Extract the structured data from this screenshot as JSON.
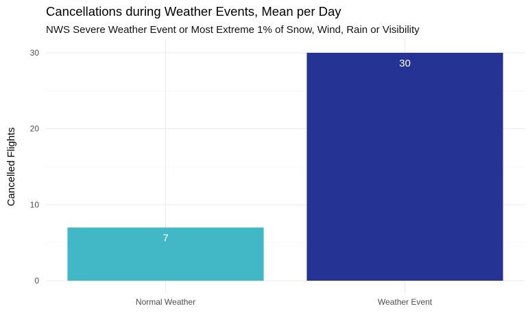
{
  "chart_data": {
    "type": "bar",
    "title": "Cancellations during Weather Events, Mean per Day",
    "subtitle": "NWS Severe Weather Event or Most Extreme 1% of Snow, Wind, Rain or Visibility",
    "xlabel": "",
    "ylabel": "Cancelled Flights",
    "categories": [
      "Normal Weather",
      "Weather Event"
    ],
    "values": [
      7,
      30
    ],
    "data_labels": [
      "7",
      "30"
    ],
    "bar_colors": [
      "#42B8C6",
      "#253494"
    ],
    "ylim": [
      0,
      30.2
    ],
    "yticks": [
      0,
      10,
      20,
      30
    ],
    "grid": true,
    "legend": "none"
  }
}
